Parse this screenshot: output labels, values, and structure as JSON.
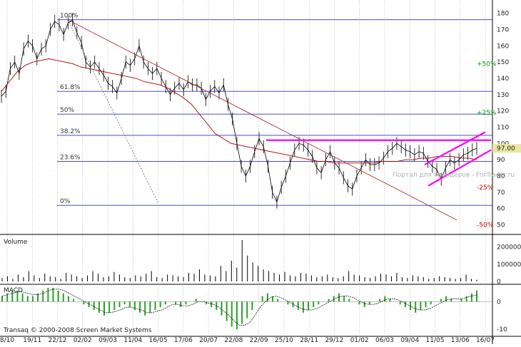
{
  "chart_data": [
    {
      "type": "candlestick",
      "panel": "price",
      "y_ticks": [
        50,
        60,
        70,
        80,
        90,
        100,
        110,
        120,
        130,
        140,
        150,
        160,
        170,
        180
      ],
      "ylim": [
        45,
        182
      ],
      "x_labels": [
        "8/10",
        "19/11",
        "22/12",
        "02/02",
        "09/03",
        "11/04",
        "16/05",
        "17/06",
        "20/07",
        "22/08",
        "22/09",
        "25/10",
        "28/11",
        "29/12",
        "01/02",
        "06/03",
        "09/04",
        "11/05",
        "13/06",
        "16/07"
      ],
      "price_label": "97.00",
      "fibonacci_levels": [
        {
          "label": "100%",
          "value": 176
        },
        {
          "label": "61.8%",
          "value": 132
        },
        {
          "label": "50%",
          "value": 118
        },
        {
          "label": "38.2%",
          "value": 105
        },
        {
          "label": "23.6%",
          "value": 89
        },
        {
          "label": "0%",
          "value": 62
        }
      ],
      "fibonacci_extensions": [
        {
          "label": "+50%",
          "value": 149,
          "color": "#009900"
        },
        {
          "label": "+25%",
          "value": 119,
          "color": "#009900"
        },
        {
          "label": "-25%",
          "value": 73,
          "color": "#cc0000"
        },
        {
          "label": "-50%",
          "value": 50,
          "color": "#cc0000"
        }
      ],
      "close_series": [
        129,
        132,
        146,
        150,
        143,
        158,
        163,
        160,
        152,
        158,
        160,
        170,
        175,
        173,
        167,
        174,
        176,
        168,
        162,
        150,
        147,
        150,
        146,
        142,
        137,
        135,
        131,
        140,
        150,
        148,
        152,
        160,
        150,
        146,
        143,
        146,
        140,
        135,
        130,
        134,
        137,
        133,
        138,
        136,
        136,
        134,
        127,
        132,
        135,
        131,
        136,
        124,
        115,
        100,
        86,
        80,
        86,
        95,
        103,
        98,
        86,
        70,
        64,
        73,
        80,
        88,
        96,
        100,
        99,
        96,
        92,
        85,
        82,
        90,
        95,
        88,
        85,
        79,
        74,
        72,
        80,
        85,
        90,
        87,
        87,
        88,
        91,
        95,
        97,
        100,
        98,
        96,
        95,
        93,
        95,
        94,
        89,
        86,
        84,
        78,
        85,
        90,
        88,
        90,
        93,
        94,
        96,
        97
      ],
      "ma_series": [
        132,
        138,
        144,
        148,
        150,
        151,
        152,
        151,
        150,
        149,
        147,
        146,
        145,
        144,
        143,
        142,
        141,
        140,
        138,
        137,
        136,
        134,
        131,
        128,
        124,
        118,
        112,
        106,
        103,
        100,
        99,
        98,
        97,
        96,
        95,
        94,
        93,
        92,
        91,
        90,
        89,
        89,
        88,
        88,
        88,
        88,
        88,
        88,
        89,
        89,
        89,
        90,
        90,
        91,
        91,
        92,
        92,
        92,
        91,
        91,
        90
      ],
      "colors": {
        "price": "#000000",
        "ma": "#aa0000",
        "trendline": "#aa3333",
        "channel": "#ff00ff",
        "fib": "#3333cc",
        "grid": "#999999",
        "price_label_bg": "#e8e6a0"
      }
    },
    {
      "type": "bar",
      "panel": "volume",
      "title": "Volume",
      "y_ticks": [
        0,
        100000,
        200000
      ],
      "ylim": [
        0,
        260000
      ],
      "values": [
        20000,
        30000,
        15000,
        40000,
        25000,
        60000,
        35000,
        20000,
        45000,
        30000,
        25000,
        15000,
        50000,
        40000,
        30000,
        20000,
        35000,
        60000,
        45000,
        25000,
        30000,
        55000,
        40000,
        25000,
        20000,
        35000,
        30000,
        45000,
        60000,
        25000,
        20000,
        40000,
        35000,
        30000,
        25000,
        50000,
        45000,
        70000,
        40000,
        35000,
        30000,
        90000,
        60000,
        120000,
        80000,
        240000,
        150000,
        110000,
        90000,
        70000,
        60000,
        50000,
        40000,
        55000,
        35000,
        30000,
        50000,
        45000,
        35000,
        25000,
        30000,
        40000,
        25000,
        20000,
        30000,
        60000,
        40000,
        35000,
        25000,
        20000,
        30000,
        45000,
        40000,
        30000,
        50000,
        25000,
        20000,
        35000,
        30000,
        25000,
        15000,
        20000,
        30000,
        25000,
        20000,
        15000,
        20000,
        40000,
        15000,
        10000
      ]
    },
    {
      "type": "bar",
      "panel": "macd",
      "title": "MACD",
      "y_ticks": [
        -10,
        0
      ],
      "ylim": [
        -12,
        6
      ],
      "values": [
        2,
        3,
        4,
        4,
        3,
        2,
        2,
        3,
        4,
        5,
        5,
        4,
        3,
        2,
        1,
        0,
        -1,
        -2,
        -3,
        -4,
        -5,
        -4,
        -3,
        -2,
        -1,
        -2,
        -3,
        -4,
        -5,
        -4,
        -3,
        -2,
        -1,
        0,
        -1,
        -2,
        -1,
        0,
        1,
        0,
        -1,
        -2,
        -3,
        -5,
        -7,
        -9,
        -10,
        -8,
        -6,
        -3,
        0,
        2,
        3,
        2,
        1,
        0,
        -1,
        -2,
        -3,
        -4,
        -3,
        -2,
        -1,
        0,
        1,
        2,
        3,
        2,
        1,
        0,
        -1,
        -2,
        -1,
        0,
        1,
        2,
        1,
        0,
        -1,
        -2,
        -3,
        -4,
        -3,
        -2,
        -1,
        0,
        1,
        2,
        1,
        0,
        1,
        2,
        3,
        4
      ],
      "signal": [
        2,
        2.5,
        3,
        3.5,
        3.5,
        3,
        2.5,
        2.5,
        3,
        4,
        4.5,
        4.5,
        4,
        3,
        2,
        1,
        0,
        -1,
        -2,
        -3,
        -4,
        -4,
        -3.5,
        -3,
        -2,
        -2,
        -2.5,
        -3,
        -4,
        -4,
        -3.5,
        -3,
        -2,
        -1,
        -1,
        -1.5,
        -1.5,
        -1,
        0,
        0,
        -0.5,
        -1,
        -2,
        -3.5,
        -5,
        -7,
        -8.5,
        -8.5,
        -7.5,
        -5,
        -2,
        0,
        1.5,
        2,
        1.5,
        0.5,
        -0.5,
        -1.5,
        -2.5,
        -3,
        -3,
        -2.5,
        -1.5,
        -0.5,
        0.5,
        1.5,
        2,
        2,
        1.5,
        0.5,
        -0.5,
        -1,
        -1,
        -0.5,
        0.5,
        1,
        1,
        0.5,
        -0.5,
        -1.5,
        -2.5,
        -3,
        -3,
        -2.5,
        -1.5,
        -0.5,
        0.5,
        1,
        1,
        1,
        1.5,
        2,
        2.5
      ]
    }
  ],
  "watermark": "Портал для трейдеров - ForTrader.ru",
  "copyright": "Transaq © 2000-2008 Screen Market Systems"
}
